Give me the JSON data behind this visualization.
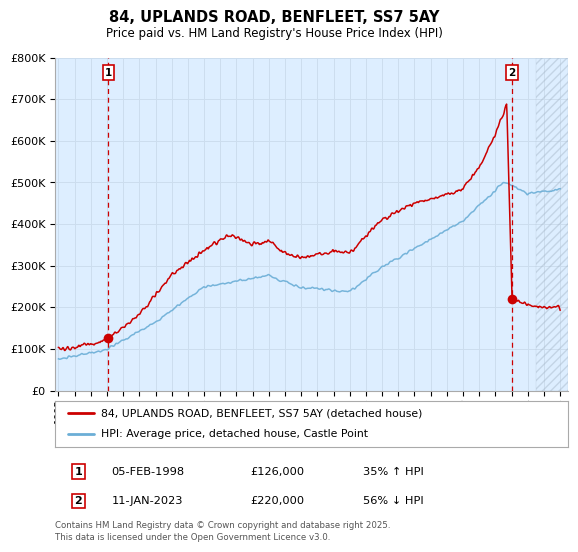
{
  "title": "84, UPLANDS ROAD, BENFLEET, SS7 5AY",
  "subtitle": "Price paid vs. HM Land Registry's House Price Index (HPI)",
  "legend_line1": "84, UPLANDS ROAD, BENFLEET, SS7 5AY (detached house)",
  "legend_line2": "HPI: Average price, detached house, Castle Point",
  "footnote": "Contains HM Land Registry data © Crown copyright and database right 2025.\nThis data is licensed under the Open Government Licence v3.0.",
  "sale1_date": "05-FEB-1998",
  "sale1_price": "£126,000",
  "sale1_hpi": "35% ↑ HPI",
  "sale2_date": "11-JAN-2023",
  "sale2_price": "£220,000",
  "sale2_hpi": "56% ↓ HPI",
  "sale1_x": 1998.09,
  "sale1_y": 126000,
  "sale2_x": 2023.03,
  "sale2_y": 220000,
  "hpi_color": "#6baed6",
  "sale_color": "#cc0000",
  "grid_color": "#ccddee",
  "bg_color": "#ddeeff",
  "plot_bg": "#ddeeff",
  "outer_bg": "#ffffff",
  "ylim": [
    0,
    800000
  ],
  "xlim_start": 1994.8,
  "xlim_end": 2026.5,
  "yticks": [
    0,
    100000,
    200000,
    300000,
    400000,
    500000,
    600000,
    700000,
    800000
  ],
  "xtick_years": [
    1995,
    1996,
    1997,
    1998,
    1999,
    2000,
    2001,
    2002,
    2003,
    2004,
    2005,
    2006,
    2007,
    2008,
    2009,
    2010,
    2011,
    2012,
    2013,
    2014,
    2015,
    2016,
    2017,
    2018,
    2019,
    2020,
    2021,
    2022,
    2023,
    2024,
    2025,
    2026
  ]
}
